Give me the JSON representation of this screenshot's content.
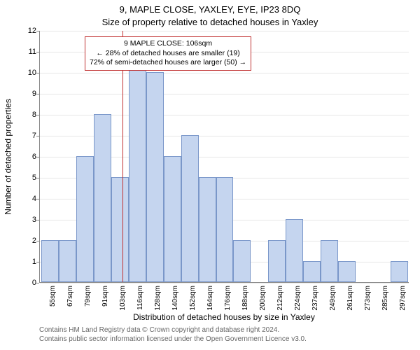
{
  "title_line1": "9, MAPLE CLOSE, YAXLEY, EYE, IP23 8DQ",
  "title_line2": "Size of property relative to detached houses in Yaxley",
  "y_axis_label": "Number of detached properties",
  "x_axis_label": "Distribution of detached houses by size in Yaxley",
  "footer_line1": "Contains HM Land Registry data © Crown copyright and database right 2024.",
  "footer_line2": "Contains public sector information licensed under the Open Government Licence v3.0.",
  "chart": {
    "type": "histogram",
    "ylim": [
      0,
      12
    ],
    "ytick_step": 1,
    "background_color": "#ffffff",
    "grid_color": "#e6e6e6",
    "axis_color": "#888888",
    "bar_fill": "#c5d5ef",
    "bar_border": "#7a97c9",
    "marker_color": "#c03030",
    "marker_position_sqm": 106,
    "annotation": {
      "border_color": "#c03030",
      "line1": "9 MAPLE CLOSE: 106sqm",
      "line2": "← 28% of detached houses are smaller (19)",
      "line3": "72% of semi-detached houses are larger (50) →"
    },
    "x_start": 50,
    "x_bin_width": 12,
    "x_tick_labels": [
      "55sqm",
      "67sqm",
      "79sqm",
      "91sqm",
      "103sqm",
      "116sqm",
      "128sqm",
      "140sqm",
      "152sqm",
      "164sqm",
      "176sqm",
      "188sqm",
      "200sqm",
      "212sqm",
      "224sqm",
      "237sqm",
      "249sqm",
      "261sqm",
      "273sqm",
      "285sqm",
      "297sqm"
    ],
    "values": [
      2,
      2,
      6,
      8,
      5,
      11,
      10,
      6,
      7,
      5,
      5,
      2,
      0,
      2,
      3,
      1,
      2,
      1,
      0,
      0,
      1
    ]
  }
}
